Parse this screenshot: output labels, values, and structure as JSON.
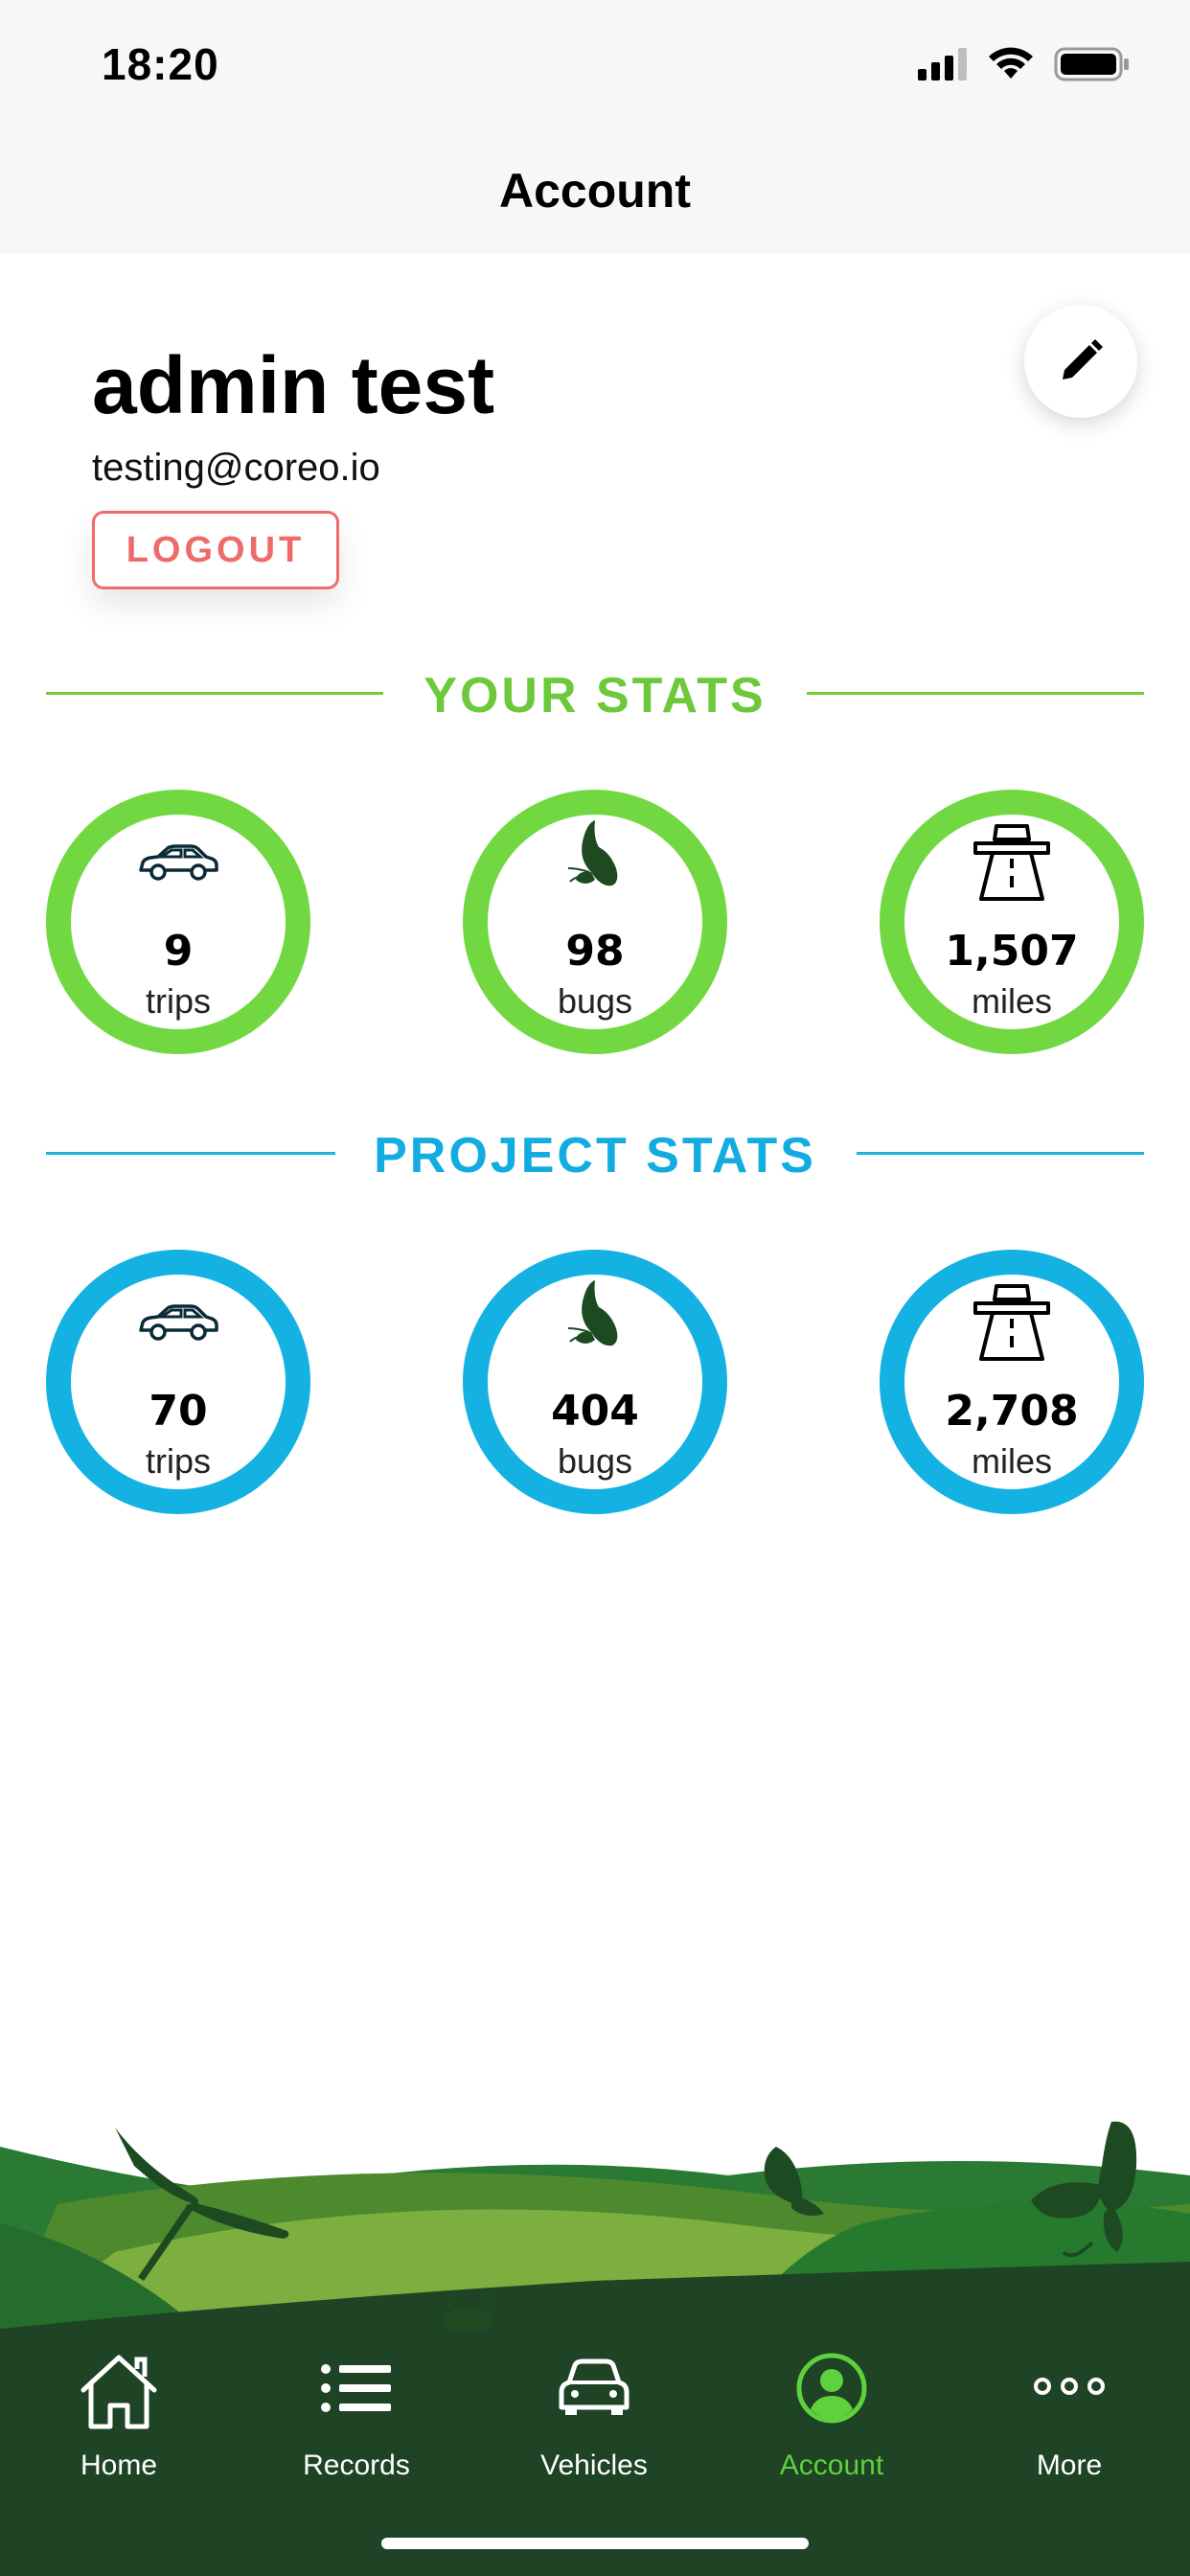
{
  "status_bar": {
    "time": "18:20"
  },
  "header": {
    "title": "Account"
  },
  "profile": {
    "name": "admin test",
    "email": "testing@coreo.io",
    "logout_label": "LOGOUT"
  },
  "your_stats": {
    "title": "YOUR STATS",
    "items": [
      {
        "icon": "car-icon",
        "value": "9",
        "unit": "trips"
      },
      {
        "icon": "butterfly-icon",
        "value": "98",
        "unit": "bugs"
      },
      {
        "icon": "motorway-icon",
        "value": "1,507",
        "unit": "miles"
      }
    ]
  },
  "project_stats": {
    "title": "PROJECT STATS",
    "items": [
      {
        "icon": "car-icon",
        "value": "70",
        "unit": "trips"
      },
      {
        "icon": "butterfly-icon",
        "value": "404",
        "unit": "bugs"
      },
      {
        "icon": "motorway-icon",
        "value": "2,708",
        "unit": "miles"
      }
    ]
  },
  "colors": {
    "your_stats_accent": "#72d842",
    "project_stats_accent": "#13b2e2",
    "logout_red": "#ef6b6b",
    "tabbar_bg": "#1e4325",
    "tab_active": "#5fd13c"
  },
  "tabbar": {
    "active": "Account",
    "tabs": [
      {
        "label": "Home",
        "icon": "home-icon"
      },
      {
        "label": "Records",
        "icon": "list-icon"
      },
      {
        "label": "Vehicles",
        "icon": "car-front-icon"
      },
      {
        "label": "Account",
        "icon": "account-icon"
      },
      {
        "label": "More",
        "icon": "more-icon"
      }
    ]
  }
}
